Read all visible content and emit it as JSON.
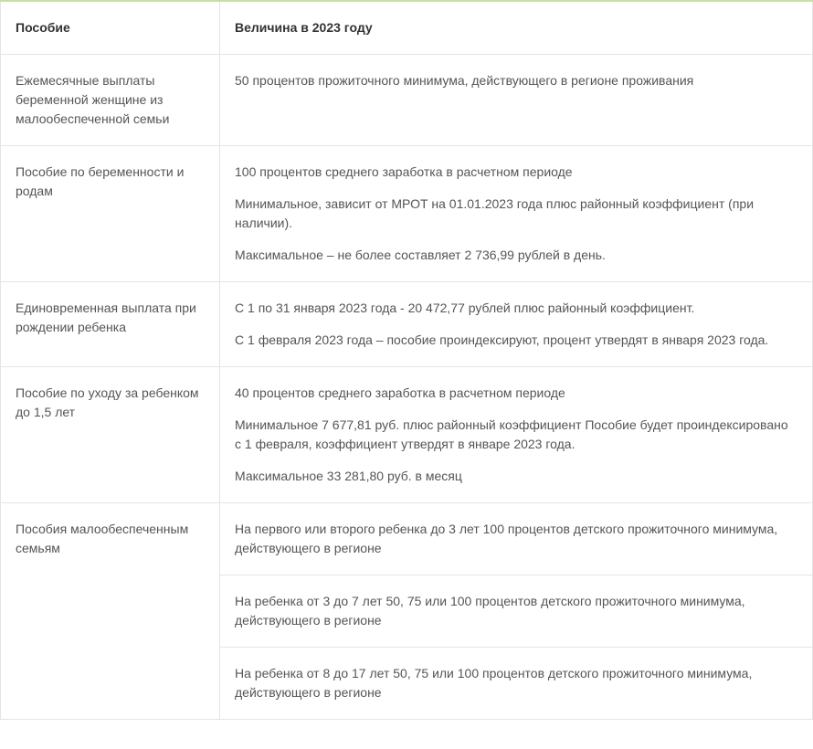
{
  "table": {
    "headers": [
      "Пособие",
      "Величина в 2023 году"
    ],
    "rows": [
      {
        "col1": "Ежемесячные выплаты беременной женщине из малообеспеченной семьи",
        "col2": [
          "50 процентов прожиточного минимума, действующего в регионе проживания"
        ]
      },
      {
        "col1": "Пособие по беременности и родам",
        "col2": [
          "100 процентов среднего заработка в расчетном периоде",
          "Минимальное, зависит от МРОТ на 01.01.2023 года плюс районный коэффициент (при наличии).",
          "Максимальное – не более составляет 2 736,99 рублей в день."
        ]
      },
      {
        "col1": "Единовременная выплата при рождении ребенка",
        "col2": [
          "С 1 по 31 января 2023 года - 20 472,77 рублей плюс районный коэффициент.",
          "С 1 февраля 2023 года – пособие проиндексируют, процент утвердят в января 2023 года."
        ]
      },
      {
        "col1": "Пособие по уходу за ребенком до 1,5 лет",
        "col2": [
          "40 процентов среднего заработка в расчетном периоде",
          "Минимальное 7 677,81 руб. плюс районный коэффициент Пособие будет проиндексировано с 1 февраля, коэффициент утвердят в январе 2023 года.",
          "Максимальное 33 281,80 руб. в месяц"
        ]
      },
      {
        "col1": "Пособия малообеспеченным семьям",
        "subcells": [
          "На первого или второго ребенка до 3 лет 100 процентов детского прожиточного минимума, действующего в регионе",
          "На ребенка от 3 до 7 лет 50, 75 или 100 процентов детского прожиточного минимума, действующего в регионе",
          "На ребенка от 8 до 17 лет 50, 75 или 100 процентов детского прожиточного минимума, действующего в регионе"
        ]
      }
    ]
  },
  "colors": {
    "border_accent": "#c8e0a8",
    "border_cell": "#e5e5e5",
    "text_header": "#333333",
    "text_body": "#555555",
    "background": "#ffffff"
  },
  "typography": {
    "font_family": "Arial, Helvetica, sans-serif",
    "font_size": 14,
    "line_height": 1.5
  }
}
